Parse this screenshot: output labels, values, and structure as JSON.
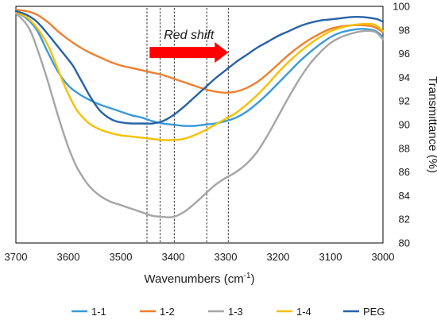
{
  "chart_data": {
    "type": "line",
    "title": "",
    "xlabel": "Wavenumbers (cm",
    "xlabel_sup": "-1",
    "xlabel_end": ")",
    "ylabel": "Transmittance (%)",
    "xlim": [
      3700,
      3000
    ],
    "ylim": [
      80,
      100
    ],
    "x_ticks": [
      3700,
      3600,
      3500,
      3400,
      3300,
      3200,
      3100,
      3000
    ],
    "y_ticks": [
      80,
      82,
      84,
      86,
      88,
      90,
      92,
      94,
      96,
      98,
      100
    ],
    "grid": false,
    "legend_position": "bottom",
    "annotation": {
      "text": "Red shift",
      "arrow_from_x": 3445,
      "arrow_to_x": 3295,
      "arrow_y": 96.1,
      "color": "#ff0000"
    },
    "reference_lines_x": [
      3450,
      3425,
      3398,
      3336,
      3295
    ],
    "series": [
      {
        "name": "1-1",
        "color": "#3a9ad9",
        "points": [
          [
            3700,
            99.5
          ],
          [
            3680,
            99.0
          ],
          [
            3660,
            98.0
          ],
          [
            3640,
            96.2
          ],
          [
            3620,
            94.5
          ],
          [
            3600,
            93.3
          ],
          [
            3580,
            92.6
          ],
          [
            3560,
            92.1
          ],
          [
            3540,
            91.7
          ],
          [
            3520,
            91.4
          ],
          [
            3500,
            91.1
          ],
          [
            3480,
            90.8
          ],
          [
            3460,
            90.6
          ],
          [
            3440,
            90.3
          ],
          [
            3420,
            90.1
          ],
          [
            3400,
            90.0
          ],
          [
            3380,
            89.9
          ],
          [
            3360,
            89.9
          ],
          [
            3340,
            90.0
          ],
          [
            3320,
            90.1
          ],
          [
            3300,
            90.3
          ],
          [
            3280,
            90.6
          ],
          [
            3260,
            91.1
          ],
          [
            3240,
            91.8
          ],
          [
            3220,
            92.6
          ],
          [
            3200,
            93.5
          ],
          [
            3180,
            94.4
          ],
          [
            3160,
            95.3
          ],
          [
            3140,
            96.1
          ],
          [
            3120,
            96.8
          ],
          [
            3100,
            97.4
          ],
          [
            3080,
            97.8
          ],
          [
            3060,
            98.0
          ],
          [
            3040,
            98.1
          ],
          [
            3020,
            98.0
          ],
          [
            3010,
            97.8
          ],
          [
            3000,
            97.4
          ]
        ]
      },
      {
        "name": "1-2",
        "color": "#f07f2f",
        "points": [
          [
            3700,
            99.7
          ],
          [
            3680,
            99.6
          ],
          [
            3660,
            99.3
          ],
          [
            3640,
            98.7
          ],
          [
            3620,
            97.9
          ],
          [
            3600,
            97.2
          ],
          [
            3580,
            96.6
          ],
          [
            3560,
            96.1
          ],
          [
            3540,
            95.7
          ],
          [
            3520,
            95.3
          ],
          [
            3500,
            95.0
          ],
          [
            3480,
            94.8
          ],
          [
            3460,
            94.6
          ],
          [
            3440,
            94.4
          ],
          [
            3420,
            94.2
          ],
          [
            3400,
            93.9
          ],
          [
            3380,
            93.6
          ],
          [
            3360,
            93.3
          ],
          [
            3340,
            93.0
          ],
          [
            3320,
            92.8
          ],
          [
            3300,
            92.7
          ],
          [
            3280,
            92.8
          ],
          [
            3260,
            93.1
          ],
          [
            3240,
            93.6
          ],
          [
            3220,
            94.3
          ],
          [
            3200,
            95.1
          ],
          [
            3180,
            95.9
          ],
          [
            3160,
            96.6
          ],
          [
            3140,
            97.2
          ],
          [
            3120,
            97.7
          ],
          [
            3100,
            98.1
          ],
          [
            3080,
            98.3
          ],
          [
            3060,
            98.4
          ],
          [
            3040,
            98.4
          ],
          [
            3020,
            98.3
          ],
          [
            3010,
            98.1
          ],
          [
            3000,
            97.8
          ]
        ]
      },
      {
        "name": "1-3",
        "color": "#a5a5a5",
        "points": [
          [
            3700,
            99.4
          ],
          [
            3690,
            99.0
          ],
          [
            3680,
            98.5
          ],
          [
            3670,
            97.7
          ],
          [
            3660,
            96.5
          ],
          [
            3650,
            95.2
          ],
          [
            3640,
            93.8
          ],
          [
            3630,
            92.3
          ],
          [
            3620,
            90.8
          ],
          [
            3610,
            89.4
          ],
          [
            3600,
            88.1
          ],
          [
            3590,
            87.0
          ],
          [
            3580,
            86.1
          ],
          [
            3560,
            84.8
          ],
          [
            3540,
            84.0
          ],
          [
            3520,
            83.5
          ],
          [
            3500,
            83.2
          ],
          [
            3480,
            82.9
          ],
          [
            3460,
            82.6
          ],
          [
            3440,
            82.3
          ],
          [
            3420,
            82.2
          ],
          [
            3400,
            82.2
          ],
          [
            3380,
            82.6
          ],
          [
            3360,
            83.3
          ],
          [
            3340,
            84.1
          ],
          [
            3320,
            84.9
          ],
          [
            3300,
            85.5
          ],
          [
            3280,
            86.0
          ],
          [
            3260,
            86.7
          ],
          [
            3240,
            87.7
          ],
          [
            3220,
            89.1
          ],
          [
            3200,
            90.7
          ],
          [
            3180,
            92.3
          ],
          [
            3160,
            93.8
          ],
          [
            3140,
            95.1
          ],
          [
            3120,
            96.1
          ],
          [
            3100,
            96.9
          ],
          [
            3080,
            97.4
          ],
          [
            3060,
            97.7
          ],
          [
            3040,
            97.9
          ],
          [
            3020,
            97.9
          ],
          [
            3010,
            97.7
          ],
          [
            3000,
            97.2
          ]
        ]
      },
      {
        "name": "1-4",
        "color": "#f5c000",
        "points": [
          [
            3700,
            99.5
          ],
          [
            3680,
            99.1
          ],
          [
            3660,
            98.2
          ],
          [
            3640,
            96.8
          ],
          [
            3630,
            95.8
          ],
          [
            3620,
            94.7
          ],
          [
            3610,
            93.6
          ],
          [
            3600,
            92.6
          ],
          [
            3590,
            91.7
          ],
          [
            3580,
            91.0
          ],
          [
            3560,
            90.1
          ],
          [
            3540,
            89.6
          ],
          [
            3520,
            89.3
          ],
          [
            3500,
            89.1
          ],
          [
            3480,
            89.0
          ],
          [
            3460,
            88.9
          ],
          [
            3440,
            88.8
          ],
          [
            3420,
            88.7
          ],
          [
            3400,
            88.7
          ],
          [
            3380,
            88.8
          ],
          [
            3360,
            89.1
          ],
          [
            3340,
            89.5
          ],
          [
            3320,
            90.0
          ],
          [
            3300,
            90.5
          ],
          [
            3280,
            91.0
          ],
          [
            3260,
            91.7
          ],
          [
            3240,
            92.5
          ],
          [
            3220,
            93.4
          ],
          [
            3200,
            94.4
          ],
          [
            3180,
            95.3
          ],
          [
            3160,
            96.1
          ],
          [
            3140,
            96.8
          ],
          [
            3120,
            97.4
          ],
          [
            3100,
            97.9
          ],
          [
            3080,
            98.2
          ],
          [
            3060,
            98.4
          ],
          [
            3040,
            98.5
          ],
          [
            3020,
            98.5
          ],
          [
            3010,
            98.3
          ],
          [
            3000,
            97.9
          ]
        ]
      },
      {
        "name": "PEG",
        "color": "#2662a8",
        "points": [
          [
            3700,
            99.6
          ],
          [
            3680,
            99.3
          ],
          [
            3660,
            98.7
          ],
          [
            3640,
            97.7
          ],
          [
            3620,
            96.6
          ],
          [
            3600,
            95.5
          ],
          [
            3590,
            94.9
          ],
          [
            3580,
            94.1
          ],
          [
            3570,
            93.3
          ],
          [
            3560,
            92.5
          ],
          [
            3550,
            91.8
          ],
          [
            3540,
            91.2
          ],
          [
            3530,
            90.8
          ],
          [
            3520,
            90.5
          ],
          [
            3510,
            90.3
          ],
          [
            3500,
            90.2
          ],
          [
            3480,
            90.1
          ],
          [
            3460,
            90.1
          ],
          [
            3440,
            90.1
          ],
          [
            3420,
            90.3
          ],
          [
            3400,
            90.8
          ],
          [
            3380,
            91.5
          ],
          [
            3360,
            92.3
          ],
          [
            3340,
            93.1
          ],
          [
            3320,
            93.9
          ],
          [
            3300,
            94.6
          ],
          [
            3280,
            95.3
          ],
          [
            3260,
            95.9
          ],
          [
            3240,
            96.5
          ],
          [
            3220,
            97.0
          ],
          [
            3200,
            97.5
          ],
          [
            3180,
            97.9
          ],
          [
            3160,
            98.3
          ],
          [
            3140,
            98.6
          ],
          [
            3120,
            98.8
          ],
          [
            3100,
            98.9
          ],
          [
            3080,
            99.0
          ],
          [
            3060,
            99.1
          ],
          [
            3040,
            99.1
          ],
          [
            3020,
            99.0
          ],
          [
            3010,
            98.9
          ],
          [
            3000,
            98.7
          ]
        ]
      }
    ]
  }
}
